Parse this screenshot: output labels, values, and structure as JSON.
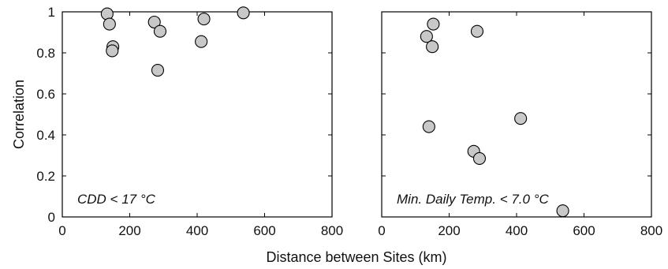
{
  "chart_data": [
    {
      "type": "scatter",
      "annotation": "CDD < 17 °C",
      "xlim": [
        0,
        800
      ],
      "ylim": [
        0,
        1
      ],
      "xticks": [
        "0",
        "200",
        "400",
        "600",
        "800"
      ],
      "yticks": [
        "0",
        "0.2",
        "0.4",
        "0.6",
        "0.8",
        "1"
      ],
      "ylabel": "Correlation",
      "points": [
        {
          "x": 133,
          "y": 0.99
        },
        {
          "x": 140,
          "y": 0.94
        },
        {
          "x": 150,
          "y": 0.83
        },
        {
          "x": 148,
          "y": 0.81
        },
        {
          "x": 273,
          "y": 0.95
        },
        {
          "x": 290,
          "y": 0.905
        },
        {
          "x": 283,
          "y": 0.715
        },
        {
          "x": 420,
          "y": 0.965
        },
        {
          "x": 412,
          "y": 0.855
        },
        {
          "x": 537,
          "y": 0.995
        }
      ]
    },
    {
      "type": "scatter",
      "annotation": "Min. Daily Temp. < 7.0 °C",
      "xlim": [
        0,
        800
      ],
      "ylim": [
        0,
        1
      ],
      "xticks": [
        "0",
        "200",
        "400",
        "600",
        "800"
      ],
      "points": [
        {
          "x": 133,
          "y": 0.88
        },
        {
          "x": 153,
          "y": 0.94
        },
        {
          "x": 150,
          "y": 0.83
        },
        {
          "x": 283,
          "y": 0.905
        },
        {
          "x": 140,
          "y": 0.44
        },
        {
          "x": 412,
          "y": 0.48
        },
        {
          "x": 273,
          "y": 0.32
        },
        {
          "x": 290,
          "y": 0.285
        },
        {
          "x": 537,
          "y": 0.03
        }
      ]
    }
  ],
  "shared": {
    "xlabel": "Distance between Sites (km)"
  }
}
